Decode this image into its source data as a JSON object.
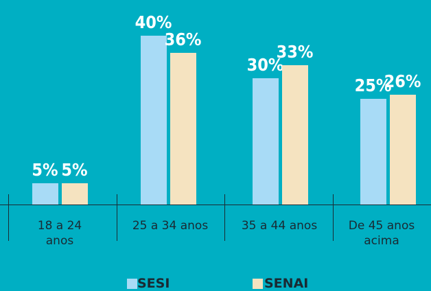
{
  "chart_data": {
    "type": "bar",
    "categories": [
      "18 a 24 anos",
      "25 a 34 anos",
      "35 a 44 anos",
      "De 45 anos acima"
    ],
    "series": [
      {
        "name": "SESI",
        "color": "#a8dbf6",
        "values": [
          5,
          40,
          30,
          25
        ],
        "value_labels": [
          "5%",
          "40%",
          "30%",
          "25%"
        ]
      },
      {
        "name": "SENAI",
        "color": "#f5e3c0",
        "values": [
          5,
          36,
          33,
          26
        ],
        "value_labels": [
          "5%",
          "36%",
          "33%",
          "26%"
        ]
      }
    ],
    "background": "#00afc3"
  }
}
